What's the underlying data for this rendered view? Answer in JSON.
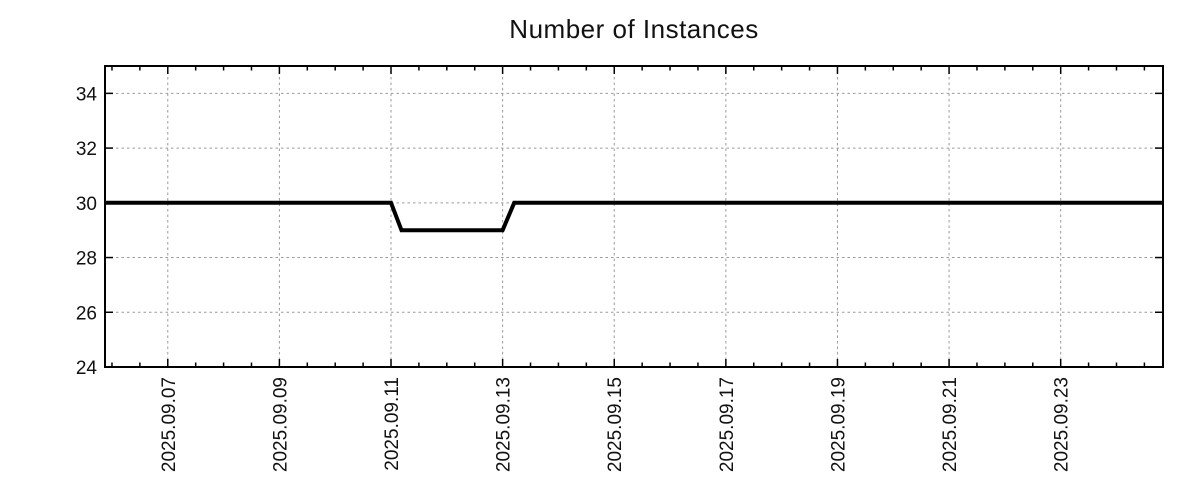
{
  "chart_data": {
    "type": "line",
    "title": "Number of Instances",
    "xlabel": "",
    "ylabel": "",
    "background_color": "#ffffff",
    "axis_color": "#000000",
    "text_color": "#111111",
    "grid": {
      "show": true,
      "style": "dotted",
      "color": "#9a9a9a"
    },
    "legend": "none",
    "x_axis": {
      "type": "date",
      "range_start": "2025-09-05 21:00",
      "range_end": "2025-09-24 20:00",
      "label_rotation_deg": -90,
      "minor_tick_start": "2025-09-06 00:00",
      "minor_tick_interval_hours": 12,
      "major_ticks": [
        {
          "date": "2025-09-07 00:00",
          "label": "2025.09.07"
        },
        {
          "date": "2025-09-09 00:00",
          "label": "2025.09.09"
        },
        {
          "date": "2025-09-11 00:00",
          "label": "2025.09.11"
        },
        {
          "date": "2025-09-13 00:00",
          "label": "2025.09.13"
        },
        {
          "date": "2025-09-15 00:00",
          "label": "2025.09.15"
        },
        {
          "date": "2025-09-17 00:00",
          "label": "2025.09.17"
        },
        {
          "date": "2025-09-19 00:00",
          "label": "2025.09.19"
        },
        {
          "date": "2025-09-21 00:00",
          "label": "2025.09.21"
        },
        {
          "date": "2025-09-23 00:00",
          "label": "2025.09.23"
        }
      ]
    },
    "y_axis": {
      "min": 24,
      "max": 35,
      "major_ticks": [
        24,
        26,
        28,
        30,
        32,
        34
      ]
    },
    "series": [
      {
        "name": "instances",
        "color": "#000000",
        "line_width": 4,
        "points": [
          [
            "2025-09-05 21:00",
            30
          ],
          [
            "2025-09-11 00:00",
            30
          ],
          [
            "2025-09-11 04:30",
            29
          ],
          [
            "2025-09-13 00:00",
            29
          ],
          [
            "2025-09-13 05:00",
            30
          ],
          [
            "2025-09-24 20:00",
            30
          ]
        ]
      }
    ]
  }
}
